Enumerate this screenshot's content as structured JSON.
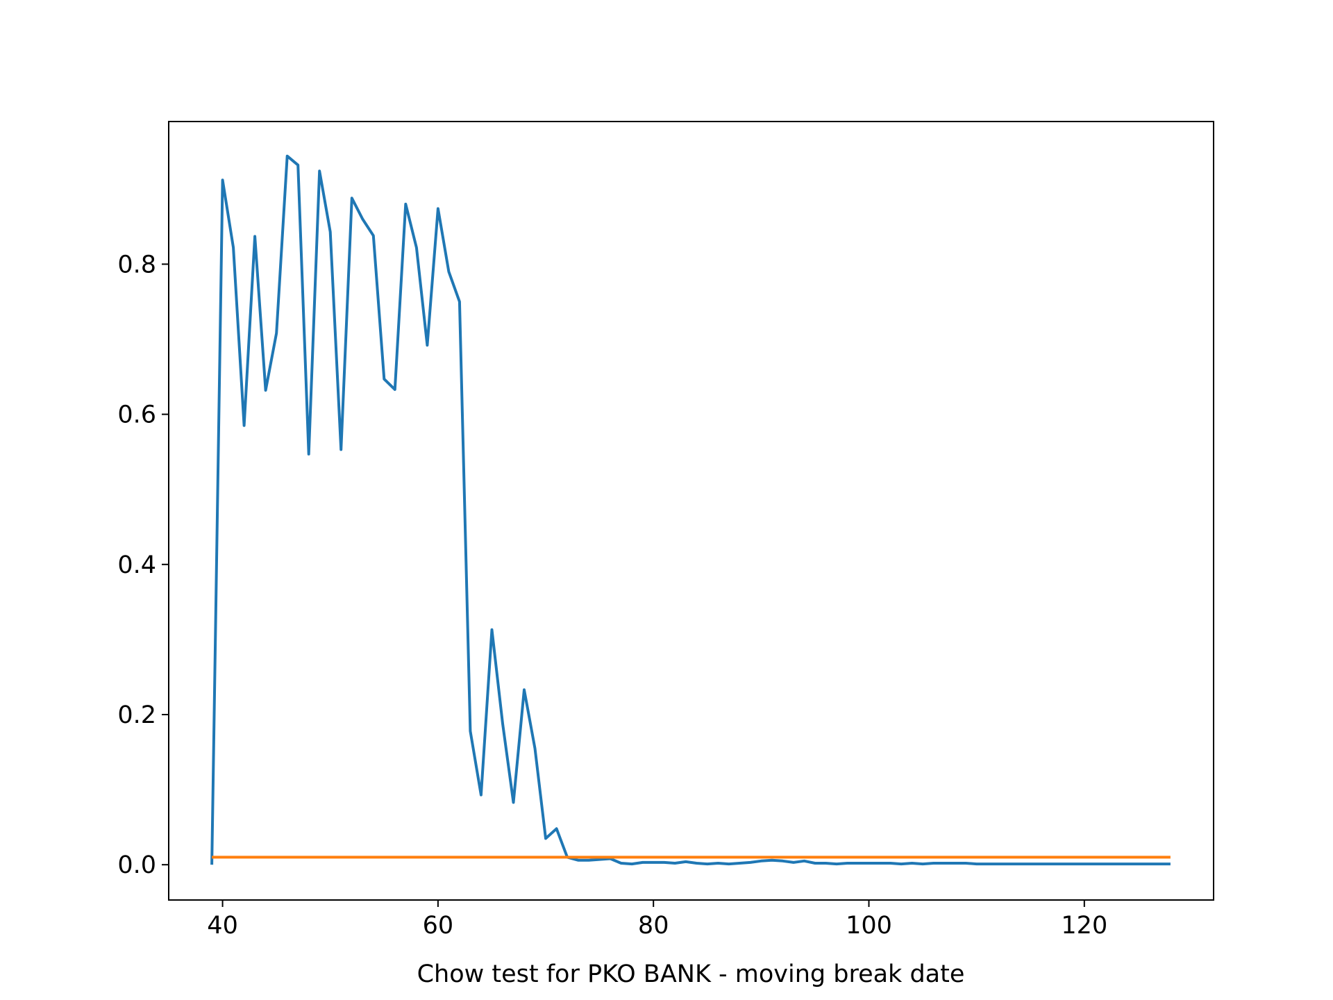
{
  "chart_data": {
    "type": "line",
    "title": "",
    "xlabel": "Chow test for PKO BANK - moving break date",
    "ylabel": "",
    "xlim": [
      35,
      132
    ],
    "ylim": [
      -0.047,
      0.99
    ],
    "grid": false,
    "legend": "none",
    "x_ticks": [
      40,
      60,
      80,
      100,
      120
    ],
    "x_tick_labels": [
      "40",
      "60",
      "80",
      "100",
      "120"
    ],
    "y_ticks": [
      0.0,
      0.2,
      0.4,
      0.6,
      0.8
    ],
    "y_tick_labels": [
      "0.0",
      "0.2",
      "0.4",
      "0.6",
      "0.8"
    ],
    "series": [
      {
        "color": "#1f77b4",
        "x": [
          39,
          40,
          41,
          42,
          43,
          44,
          45,
          46,
          47,
          48,
          49,
          50,
          51,
          52,
          53,
          54,
          55,
          56,
          57,
          58,
          59,
          60,
          61,
          62,
          63,
          64,
          65,
          66,
          67,
          68,
          69,
          70,
          71,
          72,
          73,
          74,
          75,
          76,
          77,
          78,
          79,
          80,
          81,
          82,
          83,
          84,
          85,
          86,
          87,
          88,
          89,
          90,
          91,
          92,
          93,
          94,
          95,
          96,
          97,
          98,
          99,
          100,
          101,
          102,
          103,
          104,
          105,
          106,
          107,
          108,
          109,
          110,
          111,
          112,
          113,
          114,
          115,
          116,
          117,
          118,
          119,
          120,
          121,
          122,
          123,
          124,
          125,
          126,
          127,
          128
        ],
        "y": [
          0.0,
          0.912,
          0.822,
          0.585,
          0.837,
          0.632,
          0.708,
          0.944,
          0.932,
          0.547,
          0.924,
          0.843,
          0.553,
          0.888,
          0.86,
          0.838,
          0.647,
          0.633,
          0.88,
          0.822,
          0.692,
          0.874,
          0.79,
          0.75,
          0.178,
          0.093,
          0.313,
          0.188,
          0.083,
          0.233,
          0.155,
          0.035,
          0.048,
          0.01,
          0.006,
          0.006,
          0.007,
          0.008,
          0.002,
          0.001,
          0.003,
          0.003,
          0.003,
          0.002,
          0.004,
          0.002,
          0.001,
          0.002,
          0.001,
          0.002,
          0.003,
          0.005,
          0.006,
          0.005,
          0.003,
          0.005,
          0.002,
          0.002,
          0.001,
          0.002,
          0.002,
          0.002,
          0.002,
          0.002,
          0.001,
          0.002,
          0.001,
          0.002,
          0.002,
          0.002,
          0.002,
          0.001,
          0.001,
          0.001,
          0.001,
          0.001,
          0.001,
          0.001,
          0.001,
          0.001,
          0.001,
          0.001,
          0.001,
          0.001,
          0.001,
          0.001,
          0.001,
          0.001,
          0.001,
          0.001
        ]
      },
      {
        "color": "#ff7f0e",
        "x": [
          39,
          128
        ],
        "y": [
          0.01,
          0.01
        ]
      }
    ]
  }
}
